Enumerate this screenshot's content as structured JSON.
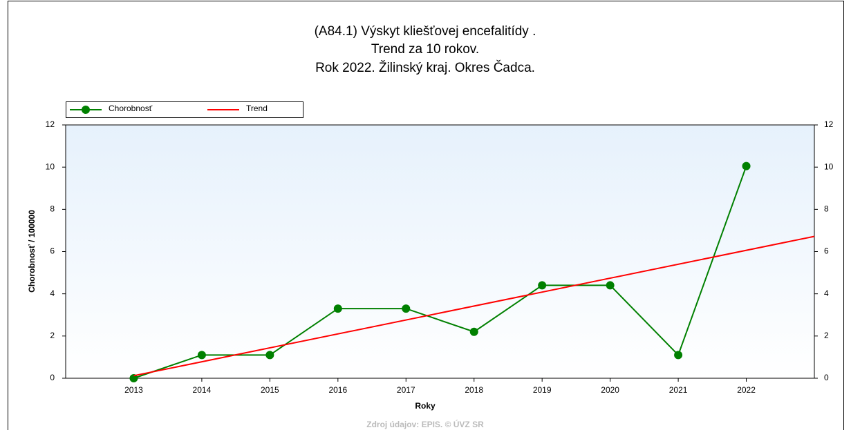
{
  "chart_data": {
    "type": "line",
    "title": [
      "(A84.1) Výskyt kliešťovej encefalitídy .",
      "Trend za 10 rokov.",
      "Rok 2022. Žilinský kraj. Okres Čadca."
    ],
    "x_label": "Roky",
    "y_label": "Chorobnosť / 100000",
    "x": [
      2013,
      2014,
      2015,
      2016,
      2017,
      2018,
      2019,
      2020,
      2021,
      2022
    ],
    "xlim": [
      2012,
      2023
    ],
    "xticks": [
      2013,
      2014,
      2015,
      2016,
      2017,
      2018,
      2019,
      2020,
      2021,
      2022
    ],
    "ylim": [
      0,
      12
    ],
    "yticks": [
      0,
      2,
      4,
      6,
      8,
      10,
      12
    ],
    "y2lim": [
      0,
      12
    ],
    "y2ticks": [
      0,
      2,
      4,
      6,
      8,
      10,
      12
    ],
    "series": [
      {
        "name": "Chorobnosť",
        "color": "#008000",
        "values": [
          0,
          1.1,
          1.1,
          3.3,
          3.3,
          2.2,
          4.4,
          4.4,
          1.1,
          10.05
        ]
      },
      {
        "name": "Trend",
        "color": "#ff0000",
        "x": [
          2013,
          2023
        ],
        "values": [
          0.12,
          6.72
        ]
      }
    ],
    "legend": "top-left",
    "source": "Zdroj údajov: EPIS. © ÚVZ SR"
  }
}
